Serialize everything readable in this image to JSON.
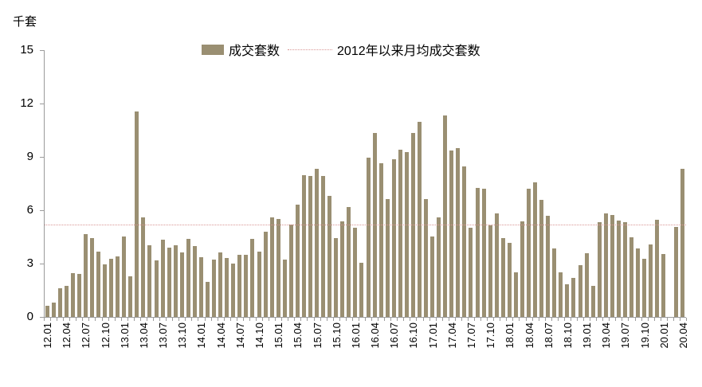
{
  "unit_label": "千套",
  "legend": {
    "bar_series_label": "成交套数",
    "avg_line_label": "2012年以来月均成交套数"
  },
  "colors": {
    "bar": "#9a8f72",
    "avg_line": "#d99694",
    "axis": "#9b9b9b",
    "text": "#000000"
  },
  "chart_data": {
    "type": "bar",
    "title": "",
    "ylabel": "千套",
    "xlabel": "",
    "ylim": [
      0,
      15
    ],
    "yticks": [
      0,
      3,
      6,
      9,
      12,
      15
    ],
    "grid": false,
    "legend_position": "top",
    "xtick_label_every": 3,
    "categories": [
      "12.01",
      "12.02",
      "12.03",
      "12.04",
      "12.05",
      "12.06",
      "12.07",
      "12.08",
      "12.09",
      "12.10",
      "12.11",
      "12.12",
      "13.01",
      "13.02",
      "13.03",
      "13.04",
      "13.05",
      "13.06",
      "13.07",
      "13.08",
      "13.09",
      "13.10",
      "13.11",
      "13.12",
      "14.01",
      "14.02",
      "14.03",
      "14.04",
      "14.05",
      "14.06",
      "14.07",
      "14.08",
      "14.09",
      "14.10",
      "14.11",
      "14.12",
      "15.01",
      "15.02",
      "15.03",
      "15.04",
      "15.05",
      "15.06",
      "15.07",
      "15.08",
      "15.09",
      "15.10",
      "15.11",
      "15.12",
      "16.01",
      "16.02",
      "16.03",
      "16.04",
      "16.05",
      "16.06",
      "16.07",
      "16.08",
      "16.09",
      "16.10",
      "16.11",
      "16.12",
      "17.01",
      "17.02",
      "17.03",
      "17.04",
      "17.05",
      "17.06",
      "17.07",
      "17.08",
      "17.09",
      "17.10",
      "17.11",
      "17.12",
      "18.01",
      "18.02",
      "18.03",
      "18.04",
      "18.05",
      "18.06",
      "18.07",
      "18.08",
      "18.09",
      "18.10",
      "18.11",
      "18.12",
      "19.01",
      "19.02",
      "19.03",
      "19.04",
      "19.05",
      "19.06",
      "19.07",
      "19.08",
      "19.09",
      "19.10",
      "19.11",
      "19.12",
      "20.01",
      "20.02",
      "20.03",
      "20.04"
    ],
    "series": [
      {
        "name": "成交套数",
        "values": [
          0.63,
          0.79,
          1.63,
          1.76,
          2.46,
          2.43,
          4.67,
          4.42,
          3.69,
          2.96,
          3.25,
          3.42,
          4.51,
          2.27,
          11.57,
          5.6,
          4.01,
          3.19,
          4.34,
          3.88,
          4.04,
          3.63,
          4.37,
          4.0,
          3.34,
          1.97,
          3.22,
          3.64,
          3.3,
          2.99,
          3.49,
          3.48,
          4.37,
          3.69,
          4.79,
          5.6,
          5.51,
          3.24,
          5.18,
          6.33,
          7.99,
          7.94,
          8.31,
          7.91,
          6.79,
          4.42,
          5.36,
          6.18,
          5.01,
          3.04,
          8.96,
          10.34,
          8.63,
          6.63,
          8.88,
          9.42,
          9.28,
          10.34,
          10.99,
          6.63,
          4.54,
          5.58,
          11.31,
          9.34,
          9.51,
          8.48,
          5.01,
          7.25,
          7.21,
          5.16,
          5.84,
          4.43,
          4.18,
          2.51,
          5.39,
          7.22,
          7.57,
          6.58,
          5.69,
          3.85,
          2.49,
          1.85,
          2.19,
          2.9,
          3.58,
          1.75,
          5.31,
          5.84,
          5.75,
          5.4,
          5.35,
          4.46,
          3.85,
          3.25,
          4.07,
          5.45,
          3.52,
          0.0,
          5.06,
          8.31
        ]
      }
    ],
    "average_line": {
      "name": "2012年以来月均成交套数",
      "value": 5.18,
      "style": "dotted"
    }
  }
}
